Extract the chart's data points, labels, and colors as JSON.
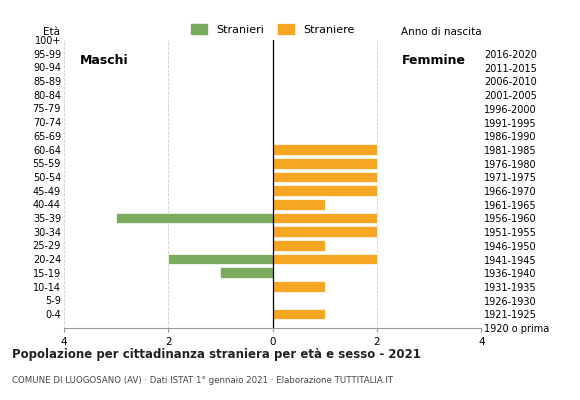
{
  "age_groups": [
    "100+",
    "95-99",
    "90-94",
    "85-89",
    "80-84",
    "75-79",
    "70-74",
    "65-69",
    "60-64",
    "55-59",
    "50-54",
    "45-49",
    "40-44",
    "35-39",
    "30-34",
    "25-29",
    "20-24",
    "15-19",
    "10-14",
    "5-9",
    "0-4"
  ],
  "birth_years": [
    "1920 o prima",
    "1921-1925",
    "1926-1930",
    "1931-1935",
    "1936-1940",
    "1941-1945",
    "1946-1950",
    "1951-1955",
    "1956-1960",
    "1961-1965",
    "1966-1970",
    "1971-1975",
    "1976-1980",
    "1981-1985",
    "1986-1990",
    "1991-1995",
    "1996-2000",
    "2001-2005",
    "2006-2010",
    "2011-2015",
    "2016-2020"
  ],
  "males": [
    0,
    0,
    0,
    0,
    0,
    0,
    0,
    0,
    0,
    0,
    0,
    0,
    0,
    3,
    0,
    0,
    2,
    1,
    0,
    0,
    0
  ],
  "females": [
    0,
    0,
    0,
    0,
    0,
    0,
    0,
    0,
    2,
    2,
    2,
    2,
    1,
    2,
    2,
    1,
    2,
    0,
    1,
    0,
    1
  ],
  "male_color": "#7aaa5e",
  "female_color": "#f5a623",
  "title": "Popolazione per cittadinanza straniera per età e sesso - 2021",
  "subtitle": "COMUNE DI LUOGOSANO (AV) · Dati ISTAT 1° gennaio 2021 · Elaborazione TUTTITALIA.IT",
  "legend_male": "Stranieri",
  "legend_female": "Straniere",
  "label_eta": "Età",
  "label_anno": "Anno di nascita",
  "label_maschi": "Maschi",
  "label_femmine": "Femmine",
  "xlim": 4,
  "background_color": "#ffffff",
  "grid_color": "#cccccc",
  "bar_height": 0.78
}
